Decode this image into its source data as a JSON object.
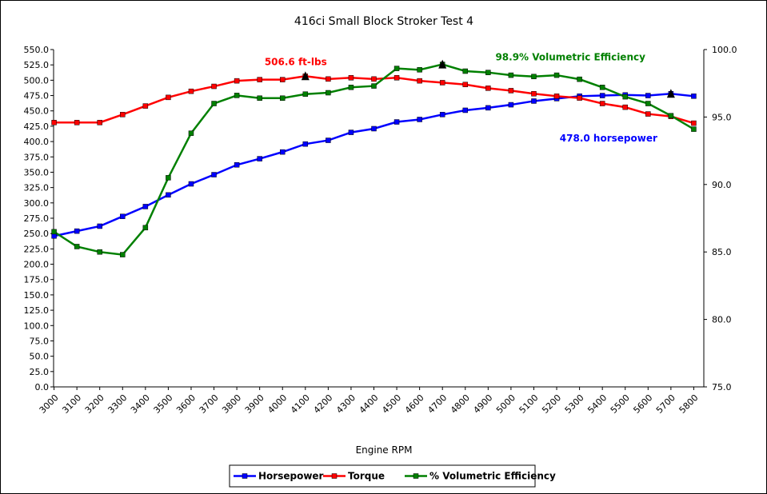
{
  "chart_data": {
    "type": "line",
    "title": "416ci Small Block Stroker Test 4",
    "xlabel": "Engine RPM",
    "x": [
      3000,
      3100,
      3200,
      3300,
      3400,
      3500,
      3600,
      3700,
      3800,
      3900,
      4000,
      4100,
      4200,
      4300,
      4400,
      4500,
      4600,
      4700,
      4800,
      4900,
      5000,
      5100,
      5200,
      5300,
      5400,
      5500,
      5600,
      5700,
      5800
    ],
    "ylim": [
      0,
      550
    ],
    "y2lim": [
      75,
      100
    ],
    "y_ticks": [
      "0.0",
      "25.0",
      "50.0",
      "75.0",
      "100.0",
      "125.0",
      "150.0",
      "175.0",
      "200.0",
      "225.0",
      "250.0",
      "275.0",
      "300.0",
      "325.0",
      "350.0",
      "375.0",
      "400.0",
      "425.0",
      "450.0",
      "475.0",
      "500.0",
      "525.0",
      "550.0"
    ],
    "y2_ticks": [
      "75.0",
      "80.0",
      "85.0",
      "90.0",
      "95.0",
      "100.0"
    ],
    "legend_position": "bottom",
    "grid": false,
    "series": [
      {
        "name": "Horsepower",
        "axis": "left",
        "color": "#0000ff",
        "values": [
          246,
          254,
          262,
          278,
          294,
          313,
          331,
          346,
          362,
          372,
          383,
          396,
          402,
          415,
          421,
          432,
          436,
          444,
          451,
          455,
          460,
          466,
          470,
          474,
          475,
          476,
          475,
          478,
          474
        ]
      },
      {
        "name": "Torque",
        "axis": "left",
        "color": "#ff0000",
        "values": [
          431,
          431,
          431,
          444,
          458,
          472,
          482,
          490,
          499,
          501,
          501,
          506.6,
          502,
          504,
          502,
          504,
          499,
          496,
          493,
          487,
          483,
          478,
          474,
          471,
          462,
          456,
          445,
          441,
          430
        ]
      },
      {
        "name": "% Volumetric Efficiency",
        "axis": "right",
        "color": "#008000",
        "values": [
          86.5,
          85.4,
          85.0,
          84.8,
          86.8,
          90.5,
          93.8,
          96.0,
          96.6,
          96.4,
          96.4,
          96.7,
          96.8,
          97.2,
          97.3,
          98.6,
          98.5,
          98.9,
          98.4,
          98.3,
          98.1,
          98.0,
          98.1,
          97.8,
          97.2,
          96.5,
          96.0,
          95.1,
          94.1
        ]
      }
    ],
    "annotations": [
      {
        "text": "506.6 ft-lbs",
        "color": "#ff0000",
        "series": "Torque",
        "x": 4100
      },
      {
        "text": "98.9% Volumetric Efficiency",
        "color": "#008000",
        "series": "% Volumetric Efficiency",
        "x": 4700
      },
      {
        "text": "478.0 horsepower",
        "color": "#0000ff",
        "series": "Horsepower",
        "x": 5700
      }
    ]
  }
}
